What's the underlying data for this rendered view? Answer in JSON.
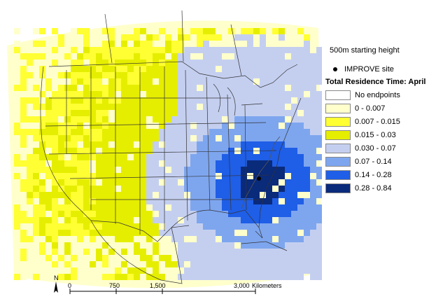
{
  "legend": {
    "starting_height": "500m starting height",
    "site_marker": "IMPROVE site",
    "title": "Total Residence Time: April",
    "classes": [
      {
        "label": "No endpoints",
        "color": "#ffffff"
      },
      {
        "label": "0 - 0.007",
        "color": "#ffffcc"
      },
      {
        "label": "0.007 - 0.015",
        "color": "#ffff33"
      },
      {
        "label": "0.015 - 0.03",
        "color": "#e6ee00"
      },
      {
        "label": "0.030 - 0.07",
        "color": "#c4cff0"
      },
      {
        "label": "0.07 - 0.14",
        "color": "#7ea6ef"
      },
      {
        "label": "0.14 - 0.28",
        "color": "#1f5ee6"
      },
      {
        "label": "0.28 - 0.84",
        "color": "#0a2a7a"
      }
    ]
  },
  "scale_bar": {
    "north_label": "N",
    "ticks": [
      "0",
      "750",
      "1,500",
      "3,000"
    ],
    "units": "Kilometers"
  },
  "map": {
    "site_name": "IMPROVE site"
  }
}
